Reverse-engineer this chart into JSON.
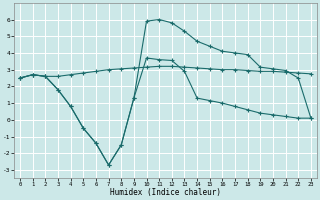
{
  "xlabel": "Humidex (Indice chaleur)",
  "x_values": [
    0,
    1,
    2,
    3,
    4,
    5,
    6,
    7,
    8,
    9,
    10,
    11,
    12,
    13,
    14,
    15,
    16,
    17,
    18,
    19,
    20,
    21,
    22,
    23
  ],
  "line_mean": [
    2.5,
    2.7,
    2.6,
    2.6,
    2.7,
    2.8,
    2.9,
    3.0,
    3.05,
    3.1,
    3.15,
    3.2,
    3.2,
    3.15,
    3.1,
    3.05,
    3.0,
    3.0,
    2.95,
    2.9,
    2.9,
    2.85,
    2.8,
    2.75
  ],
  "line_max": [
    2.5,
    2.7,
    2.6,
    1.8,
    0.8,
    -0.5,
    -1.4,
    -2.7,
    -1.5,
    1.3,
    5.9,
    6.0,
    5.8,
    5.3,
    4.7,
    4.4,
    4.1,
    4.0,
    3.9,
    3.15,
    3.05,
    2.95,
    2.5,
    0.1
  ],
  "line_min": [
    2.5,
    2.7,
    2.6,
    1.8,
    0.8,
    -0.5,
    -1.4,
    -2.7,
    -1.5,
    1.3,
    3.7,
    3.6,
    3.55,
    2.9,
    1.3,
    1.15,
    1.0,
    0.8,
    0.6,
    0.4,
    0.3,
    0.2,
    0.1,
    0.1
  ],
  "line_color": "#1a6b6b",
  "bg_color": "#cce8e8",
  "grid_color": "#b8d8d8",
  "ylim": [
    -3.5,
    7.0
  ],
  "xlim": [
    -0.5,
    23.5
  ],
  "yticks": [
    -3,
    -2,
    -1,
    0,
    1,
    2,
    3,
    4,
    5,
    6
  ],
  "xticks": [
    0,
    1,
    2,
    3,
    4,
    5,
    6,
    7,
    8,
    9,
    10,
    11,
    12,
    13,
    14,
    15,
    16,
    17,
    18,
    19,
    20,
    21,
    22,
    23
  ]
}
